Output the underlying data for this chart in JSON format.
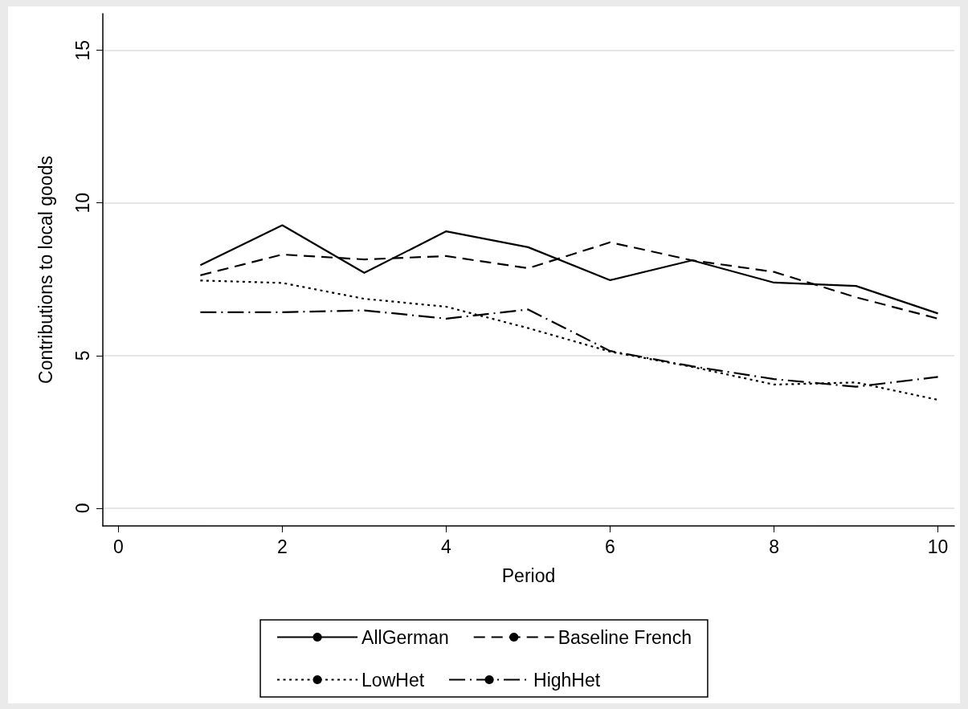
{
  "chart_data": {
    "type": "line",
    "xlabel": "Period",
    "ylabel": "Contributions to local goods",
    "x": [
      1,
      2,
      3,
      4,
      5,
      6,
      7,
      8,
      9,
      10
    ],
    "series": [
      {
        "name": "AllGerman",
        "color": "#000000",
        "line_style": "solid",
        "values": [
          7.96,
          9.27,
          7.71,
          9.07,
          8.55,
          7.47,
          8.12,
          7.39,
          7.28,
          6.38
        ]
      },
      {
        "name": "Baseline French",
        "color": "#000000",
        "line_style": "dashed",
        "values": [
          7.63,
          8.31,
          8.15,
          8.26,
          7.86,
          8.71,
          8.12,
          7.74,
          6.91,
          6.21
        ]
      },
      {
        "name": "LowHet",
        "color": "#000000",
        "line_style": "dotted",
        "values": [
          7.46,
          7.38,
          6.86,
          6.6,
          5.9,
          5.13,
          4.63,
          4.05,
          4.12,
          3.55
        ]
      },
      {
        "name": "HighHet",
        "color": "#000000",
        "line_style": "dashdot",
        "values": [
          6.42,
          6.42,
          6.48,
          6.21,
          6.51,
          5.15,
          4.65,
          4.23,
          3.98,
          4.3
        ]
      }
    ],
    "xlim": [
      -0.19,
      10.2
    ],
    "xticks": [
      0,
      2,
      4,
      6,
      8,
      10
    ],
    "ylim": [
      -0.58,
      16.2
    ],
    "yticks": [
      0,
      5,
      10,
      15
    ],
    "grid": "y",
    "legend": "bottom",
    "marker": "none"
  }
}
